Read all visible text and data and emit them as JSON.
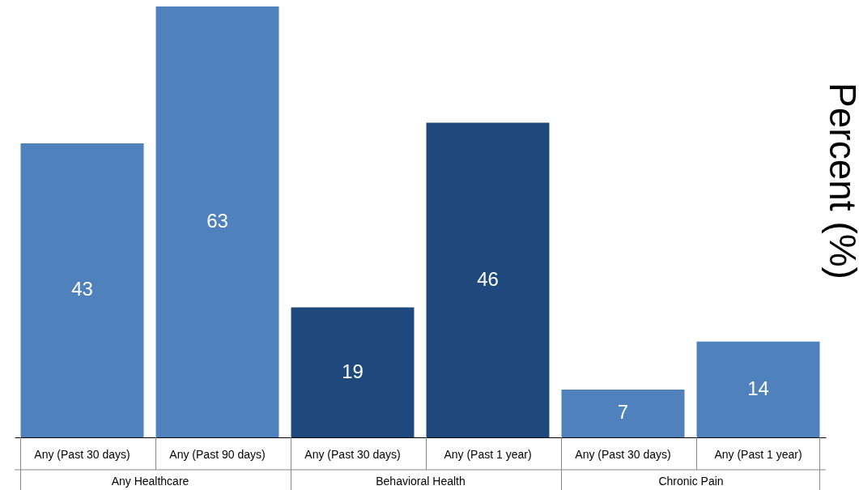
{
  "chart_data": {
    "type": "bar",
    "ylabel": "Percent (%)",
    "categories": [
      "Any (Past 30 days)",
      "Any (Past 90 days)",
      "Any (Past 30 days)",
      "Any (Past 1 year)",
      "Any (Past 30 days)",
      "Any (Past 1 year)"
    ],
    "values": [
      43,
      63,
      19,
      46,
      7,
      14
    ],
    "colors": [
      "#4f81bd",
      "#4f81bd",
      "#1f497d",
      "#1f497d",
      "#4f81bd",
      "#4f81bd"
    ],
    "annotations": [
      "Any Healthcare",
      "Behavioral Health",
      "Chronic Pain"
    ],
    "data_labels": true,
    "tick_labels": "x",
    "grid": false
  }
}
